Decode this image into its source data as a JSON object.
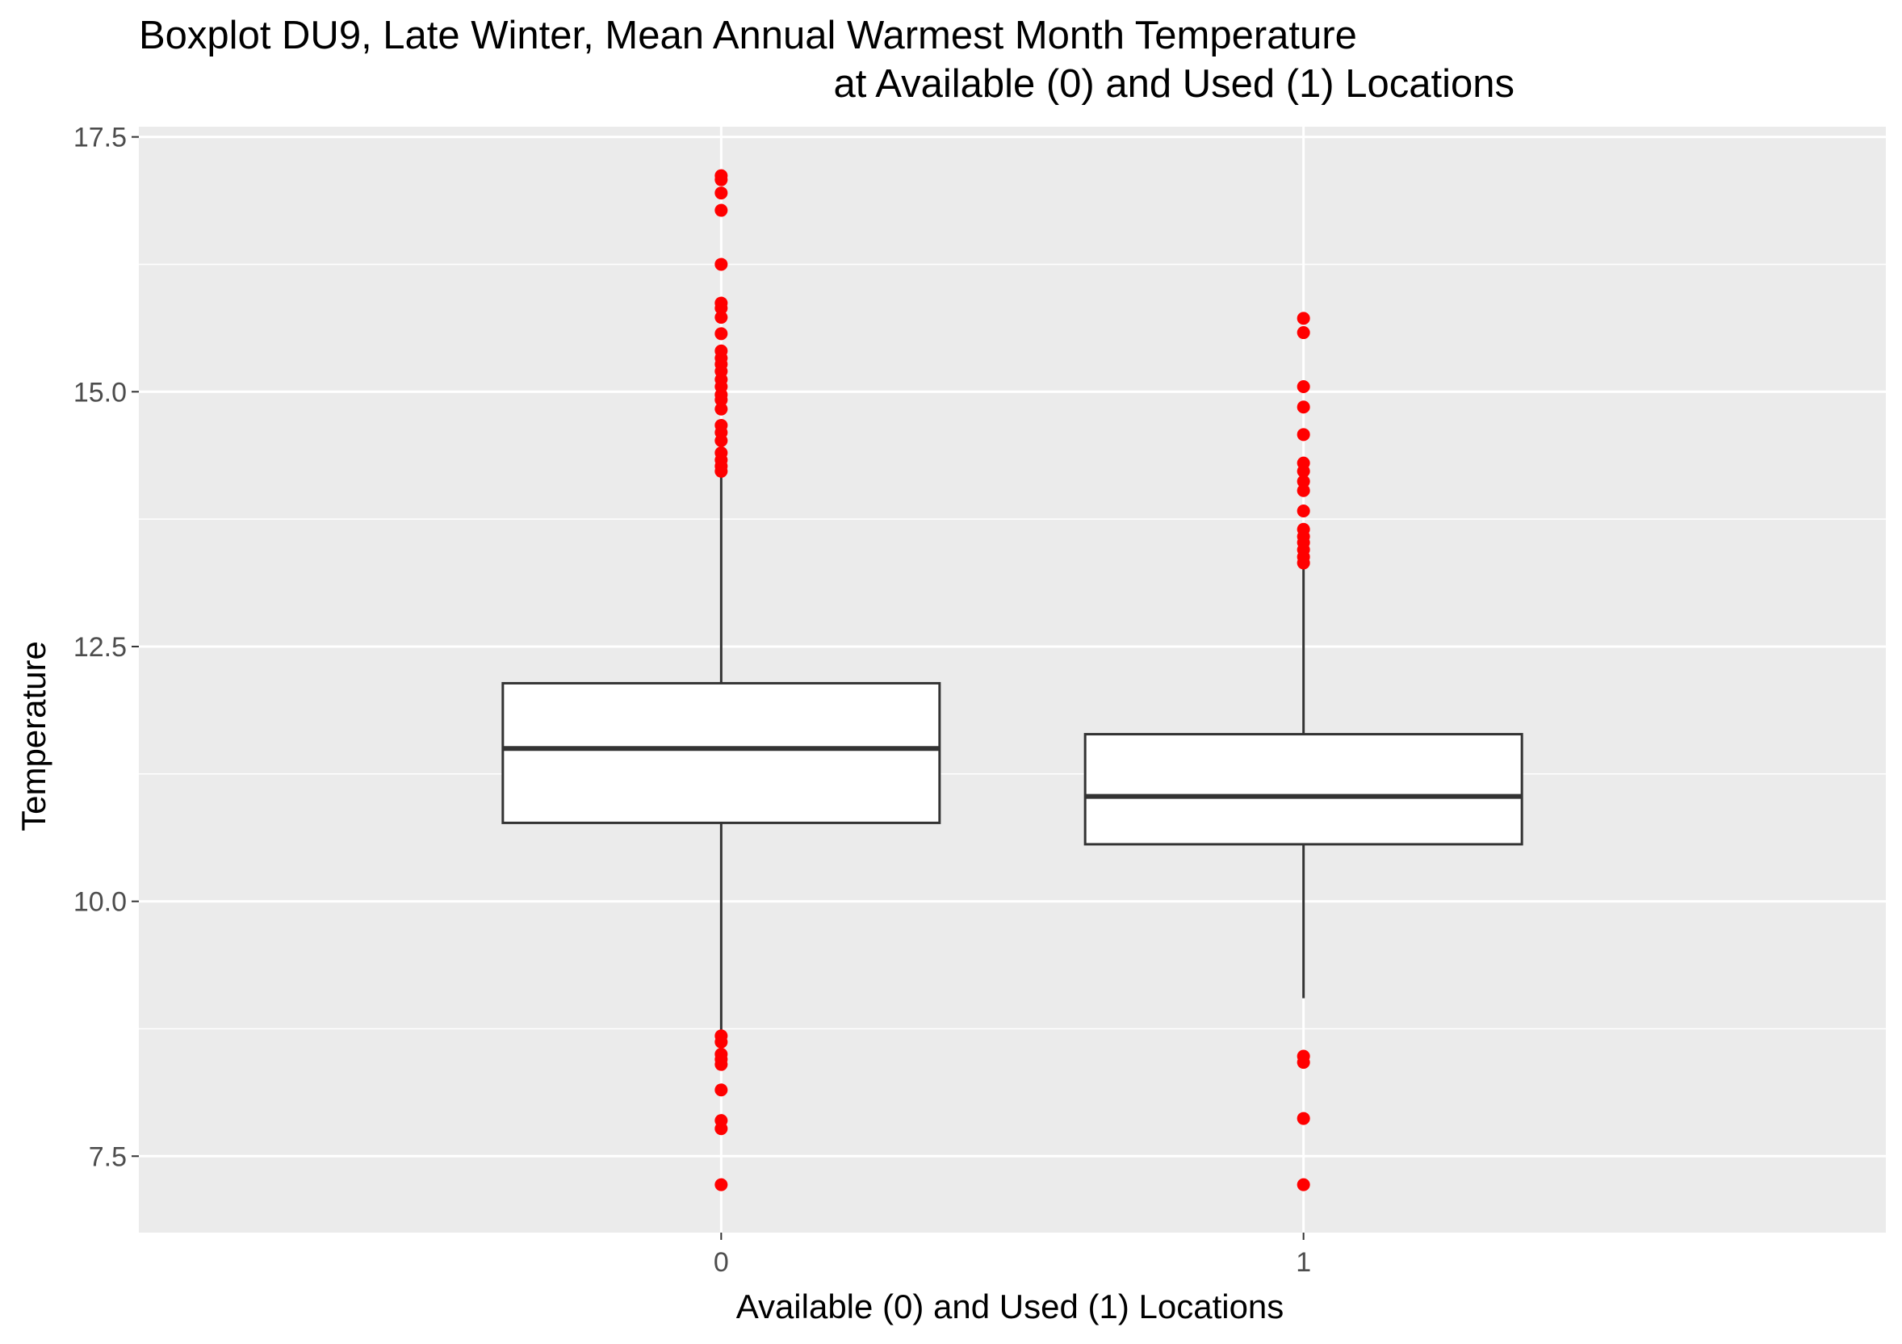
{
  "chart_data": {
    "type": "boxplot",
    "title": "Boxplot DU9, Late Winter, Mean Annual Warmest Month Temperature",
    "subtitle": "at Available (0) and Used (1) Locations",
    "xlabel": "Available (0) and Used (1) Locations",
    "ylabel": "Temperature",
    "categories": [
      "0",
      "1"
    ],
    "ylim": [
      6.75,
      17.6
    ],
    "yticks": [
      7.5,
      10.0,
      12.5,
      15.0,
      17.5
    ],
    "ytick_labels": [
      "7.5",
      "10.0",
      "12.5",
      "15.0",
      "17.5"
    ],
    "grid": true,
    "panel_color": "#ebebeb",
    "outlier_color": "#ff0000",
    "boxes": [
      {
        "category": "0",
        "whisker_low": 8.72,
        "q1": 10.77,
        "median": 11.5,
        "q3": 12.14,
        "whisker_high": 14.2,
        "outliers": [
          17.12,
          17.08,
          16.95,
          16.78,
          16.25,
          15.87,
          15.82,
          15.73,
          15.57,
          15.4,
          15.33,
          15.27,
          15.2,
          15.12,
          15.05,
          14.97,
          14.92,
          14.83,
          14.67,
          14.6,
          14.52,
          14.4,
          14.33,
          14.27,
          14.22,
          8.68,
          8.62,
          8.5,
          8.45,
          8.4,
          8.15,
          7.85,
          7.77,
          7.22
        ]
      },
      {
        "category": "1",
        "whisker_low": 9.05,
        "q1": 10.56,
        "median": 11.03,
        "q3": 11.64,
        "whisker_high": 13.27,
        "outliers": [
          15.72,
          15.58,
          15.05,
          14.85,
          14.58,
          14.3,
          14.22,
          14.12,
          14.03,
          13.83,
          13.65,
          13.58,
          13.52,
          13.45,
          13.38,
          13.32,
          8.48,
          8.42,
          7.87,
          7.22
        ]
      }
    ]
  }
}
